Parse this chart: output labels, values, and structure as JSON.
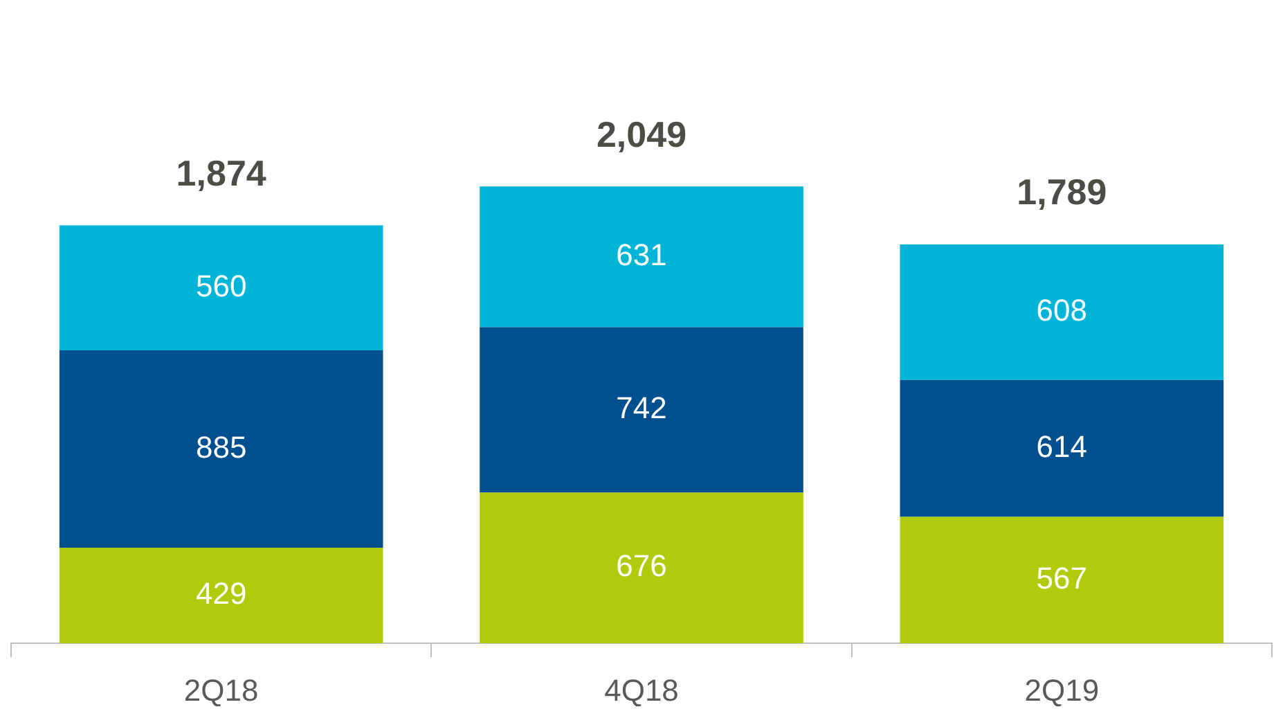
{
  "chart_data": {
    "type": "bar",
    "stacked": true,
    "categories": [
      "2Q18",
      "4Q18",
      "2Q19"
    ],
    "series": [
      {
        "color": "#b0cb0b",
        "values": [
          429,
          676,
          567
        ]
      },
      {
        "color": "#004f8f",
        "values": [
          885,
          742,
          614
        ]
      },
      {
        "color": "#00b4d8",
        "values": [
          560,
          631,
          608
        ]
      }
    ],
    "data_labels": true,
    "totals": [
      "1,874",
      "2,049",
      "1,789"
    ],
    "grid": false,
    "legend": false,
    "tick_labels": "x"
  }
}
